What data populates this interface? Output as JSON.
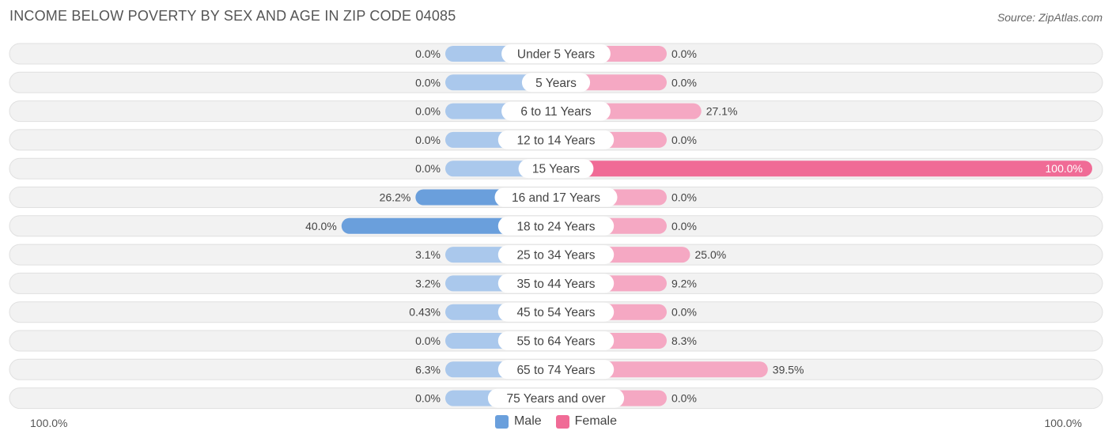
{
  "title": "INCOME BELOW POVERTY BY SEX AND AGE IN ZIP CODE 04085",
  "source": "Source: ZipAtlas.com",
  "colors": {
    "male_strong": "#6a9fdc",
    "male_light": "#aac8ec",
    "female_strong": "#f06b96",
    "female_light": "#f5a8c3",
    "row_bg": "#f2f2f2",
    "row_border": "#e0e0e0"
  },
  "legend": {
    "male": "Male",
    "female": "Female"
  },
  "axis": {
    "left_label": "100.0%",
    "right_label": "100.0%"
  },
  "chart_data": {
    "type": "bar",
    "orientation": "horizontal-diverging",
    "categories": [
      "Under 5 Years",
      "5 Years",
      "6 to 11 Years",
      "12 to 14 Years",
      "15 Years",
      "16 and 17 Years",
      "18 to 24 Years",
      "25 to 34 Years",
      "35 to 44 Years",
      "45 to 54 Years",
      "55 to 64 Years",
      "65 to 74 Years",
      "75 Years and over"
    ],
    "series": [
      {
        "name": "Male",
        "values": [
          0.0,
          0.0,
          0.0,
          0.0,
          0.0,
          26.2,
          40.0,
          3.1,
          3.2,
          0.43,
          0.0,
          6.3,
          0.0
        ],
        "labels": [
          "0.0%",
          "0.0%",
          "0.0%",
          "0.0%",
          "0.0%",
          "26.2%",
          "40.0%",
          "3.1%",
          "3.2%",
          "0.43%",
          "0.0%",
          "6.3%",
          "0.0%"
        ]
      },
      {
        "name": "Female",
        "values": [
          0.0,
          0.0,
          27.1,
          0.0,
          100.0,
          0.0,
          0.0,
          25.0,
          9.2,
          0.0,
          8.3,
          39.5,
          0.0
        ],
        "labels": [
          "0.0%",
          "0.0%",
          "27.1%",
          "0.0%",
          "100.0%",
          "0.0%",
          "0.0%",
          "25.0%",
          "9.2%",
          "0.0%",
          "8.3%",
          "39.5%",
          "0.0%"
        ]
      }
    ],
    "xlim": [
      -100,
      100
    ],
    "unit": "%"
  }
}
